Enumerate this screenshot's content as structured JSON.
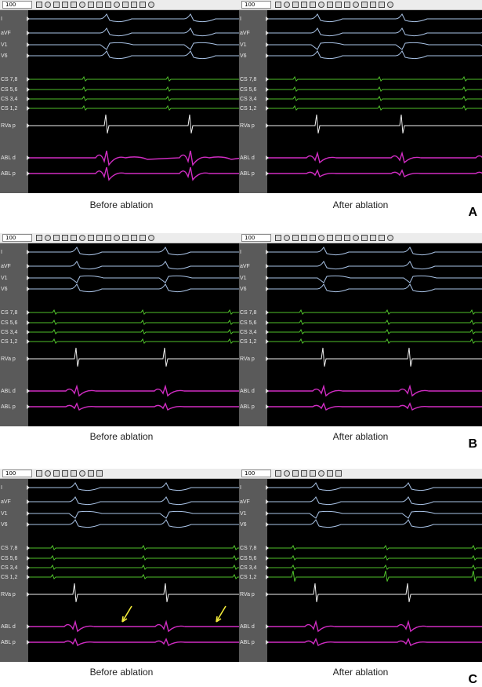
{
  "toolbar": {
    "zoom_value": "100"
  },
  "channels": [
    "I",
    "aVF",
    "V1",
    "V6",
    "CS 7,8",
    "CS 5,6",
    "CS 3,4",
    "CS 1,2",
    "RVa p",
    "ABL d",
    "ABL p"
  ],
  "colors": {
    "surface": "#a9c3e6",
    "cs": "#4fbf2a",
    "rva": "#f0f0f0",
    "abl": "#d12cc3",
    "arrow": "#f2ea3a",
    "gutter": "#5a5a5a"
  },
  "captions": {
    "before": "Before ablation",
    "after": "After ablation"
  },
  "rows": [
    {
      "letter": "A"
    },
    {
      "letter": "B"
    },
    {
      "letter": "C"
    }
  ]
}
